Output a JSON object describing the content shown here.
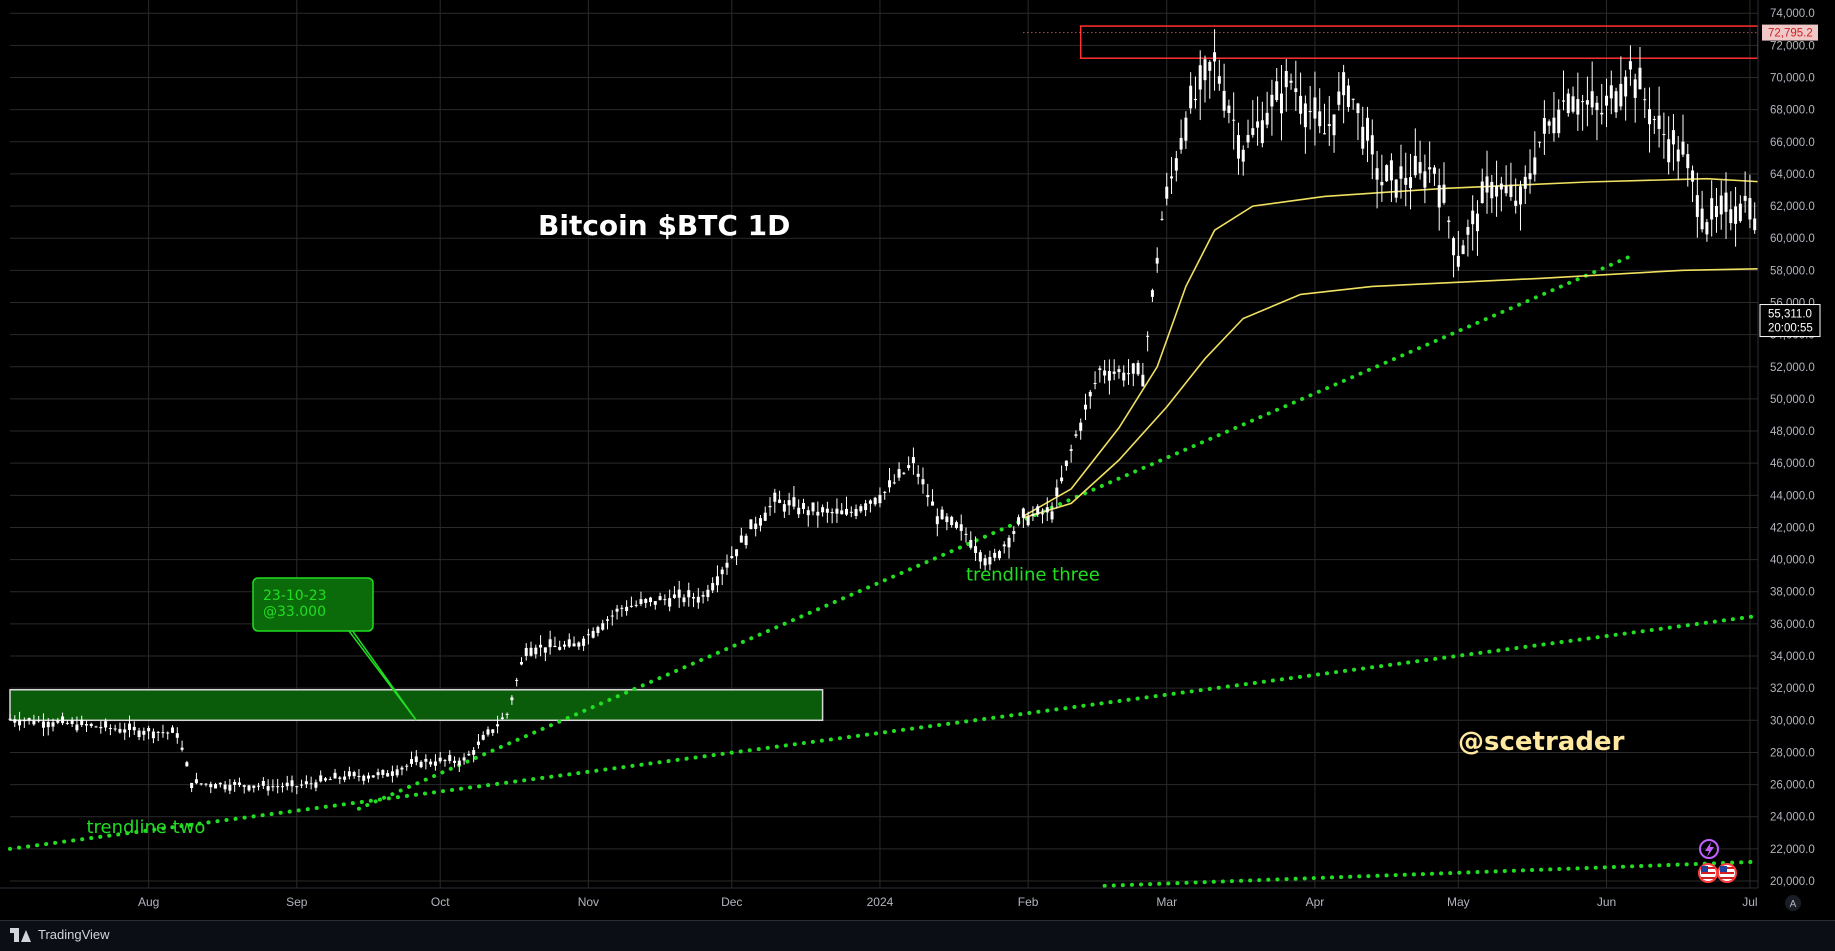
{
  "chart_data": {
    "type": "candlestick",
    "title": "Bitcoin $BTC 1D",
    "watermark": "@scetrader",
    "ylim": [
      19500,
      74600
    ],
    "y_ticks": [
      "20,000.0",
      "22,000.0",
      "24,000.0",
      "26,000.0",
      "28,000.0",
      "30,000.0",
      "32,000.0",
      "34,000.0",
      "36,000.0",
      "38,000.0",
      "40,000.0",
      "42,000.0",
      "44,000.0",
      "46,000.0",
      "48,000.0",
      "50,000.0",
      "52,000.0",
      "54,000.0",
      "56,000.0",
      "58,000.0",
      "60,000.0",
      "62,000.0",
      "64,000.0",
      "66,000.0",
      "68,000.0",
      "70,000.0",
      "72,000.0",
      "74,000.0"
    ],
    "x_ticks": [
      {
        "label": "Aug",
        "day": 29
      },
      {
        "label": "Sep",
        "day": 60
      },
      {
        "label": "Oct",
        "day": 90
      },
      {
        "label": "Nov",
        "day": 121
      },
      {
        "label": "Dec",
        "day": 151
      },
      {
        "label": "2024",
        "day": 182
      },
      {
        "label": "Feb",
        "day": 213
      },
      {
        "label": "Mar",
        "day": 242
      },
      {
        "label": "Apr",
        "day": 273
      },
      {
        "label": "May",
        "day": 303
      },
      {
        "label": "Jun",
        "day": 334
      },
      {
        "label": "Jul",
        "day": 364
      }
    ],
    "price_labels": {
      "resistance": "72,795.2",
      "last_price": "55,311.0",
      "countdown": "20:00:55"
    },
    "colors": {
      "candle": "#ffffff",
      "ma": "#f0e060",
      "trendline": "#22dd22",
      "support_zone": "#0a5c0a",
      "resistance_box": "#ff3030",
      "grid": "#2a2a2a",
      "text_green": "#22dd22",
      "watermark": "#ffe8a0"
    },
    "key_points": [
      {
        "day": 0,
        "price": 30100
      },
      {
        "day": 12,
        "price": 29800
      },
      {
        "day": 25,
        "price": 29400
      },
      {
        "day": 30,
        "price": 29300
      },
      {
        "day": 35,
        "price": 29200
      },
      {
        "day": 38,
        "price": 26100
      },
      {
        "day": 45,
        "price": 26000
      },
      {
        "day": 55,
        "price": 25900
      },
      {
        "day": 60,
        "price": 25900
      },
      {
        "day": 70,
        "price": 26500
      },
      {
        "day": 78,
        "price": 26600
      },
      {
        "day": 85,
        "price": 27400
      },
      {
        "day": 95,
        "price": 27500
      },
      {
        "day": 104,
        "price": 30400
      },
      {
        "day": 108,
        "price": 34500
      },
      {
        "day": 118,
        "price": 34600
      },
      {
        "day": 128,
        "price": 37000
      },
      {
        "day": 138,
        "price": 37600
      },
      {
        "day": 145,
        "price": 37700
      },
      {
        "day": 155,
        "price": 41900
      },
      {
        "day": 160,
        "price": 43600
      },
      {
        "day": 168,
        "price": 43000
      },
      {
        "day": 175,
        "price": 42800
      },
      {
        "day": 183,
        "price": 44200
      },
      {
        "day": 189,
        "price": 46000
      },
      {
        "day": 194,
        "price": 42700
      },
      {
        "day": 200,
        "price": 41600
      },
      {
        "day": 205,
        "price": 39700
      },
      {
        "day": 212,
        "price": 42600
      },
      {
        "day": 218,
        "price": 43000
      },
      {
        "day": 223,
        "price": 47700
      },
      {
        "day": 228,
        "price": 51800
      },
      {
        "day": 237,
        "price": 51500
      },
      {
        "day": 241,
        "price": 61200
      },
      {
        "day": 246,
        "price": 67500
      },
      {
        "day": 252,
        "price": 71000
      },
      {
        "day": 258,
        "price": 65500
      },
      {
        "day": 263,
        "price": 67800
      },
      {
        "day": 268,
        "price": 69800
      },
      {
        "day": 275,
        "price": 66500
      },
      {
        "day": 280,
        "price": 69500
      },
      {
        "day": 287,
        "price": 63500
      },
      {
        "day": 293,
        "price": 63800
      },
      {
        "day": 298,
        "price": 64400
      },
      {
        "day": 303,
        "price": 58900
      },
      {
        "day": 310,
        "price": 63500
      },
      {
        "day": 316,
        "price": 62100
      },
      {
        "day": 320,
        "price": 66000
      },
      {
        "day": 326,
        "price": 69000
      },
      {
        "day": 333,
        "price": 67800
      },
      {
        "day": 339,
        "price": 70500
      },
      {
        "day": 345,
        "price": 66800
      },
      {
        "day": 350,
        "price": 65200
      },
      {
        "day": 355,
        "price": 61000
      },
      {
        "day": 360,
        "price": 61800
      },
      {
        "day": 364,
        "price": 62500
      },
      {
        "day": 367,
        "price": 56500
      }
    ],
    "moving_averages": [
      {
        "points": [
          {
            "day": 212,
            "price": 42700
          },
          {
            "day": 222,
            "price": 44400
          },
          {
            "day": 232,
            "price": 48200
          },
          {
            "day": 240,
            "price": 52000
          },
          {
            "day": 246,
            "price": 57000
          },
          {
            "day": 252,
            "price": 60500
          },
          {
            "day": 260,
            "price": 62000
          },
          {
            "day": 275,
            "price": 62600
          },
          {
            "day": 300,
            "price": 63100
          },
          {
            "day": 330,
            "price": 63500
          },
          {
            "day": 355,
            "price": 63700
          },
          {
            "day": 367,
            "price": 63500
          }
        ]
      },
      {
        "points": [
          {
            "day": 212,
            "price": 42600
          },
          {
            "day": 222,
            "price": 43500
          },
          {
            "day": 232,
            "price": 46200
          },
          {
            "day": 242,
            "price": 49500
          },
          {
            "day": 250,
            "price": 52500
          },
          {
            "day": 258,
            "price": 55000
          },
          {
            "day": 270,
            "price": 56500
          },
          {
            "day": 285,
            "price": 57000
          },
          {
            "day": 320,
            "price": 57500
          },
          {
            "day": 350,
            "price": 58000
          },
          {
            "day": 367,
            "price": 58100
          }
        ]
      }
    ],
    "trendlines": [
      {
        "label": "",
        "from": {
          "day": 0,
          "price": 22000
        },
        "to": {
          "day": 370,
          "price": 36500
        }
      },
      {
        "label": "",
        "from": {
          "day": 73,
          "price": 24500
        },
        "to": {
          "day": 340,
          "price": 59000
        }
      },
      {
        "label": "",
        "from": {
          "day": 229,
          "price": 19700
        },
        "to": {
          "day": 370,
          "price": 21200
        }
      }
    ],
    "trendline_labels": [
      {
        "text": "trendline two",
        "day": 16,
        "price": 23000
      },
      {
        "text": "trendline three",
        "day": 200,
        "price": 38700
      }
    ],
    "support_zone": {
      "from_day": 0,
      "to_day": 170,
      "low": 30000,
      "high": 31900
    },
    "resistance_zone": {
      "from_day": 224,
      "to_day": 370,
      "low": 71200,
      "high": 73200
    },
    "resistance_level": 72795.2,
    "callout": {
      "line1": "23-10-23",
      "line2": "@33.000",
      "anchor_day": 85,
      "anchor_price": 30000
    }
  },
  "footer": {
    "brand": "TradingView"
  },
  "icons": {
    "alert": "lightning-icon",
    "flags": "us-flag-icon",
    "scale_button": "auto-scale-icon",
    "scale_label": "A"
  }
}
